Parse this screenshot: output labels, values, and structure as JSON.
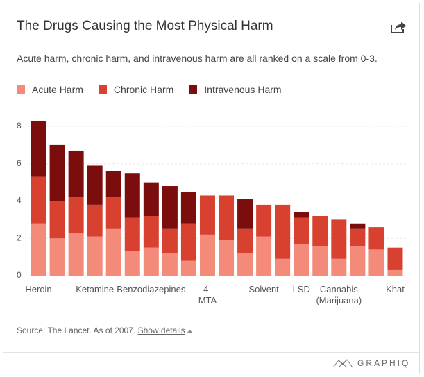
{
  "chart_data": {
    "type": "stacked_bar",
    "title": "The Drugs Causing the Most Physical Harm",
    "subtitle": "Acute harm, chronic harm, and intravenous harm are all ranked on a scale from 0-3.",
    "categories": [
      "Heroin",
      null,
      null,
      "Ketamine",
      null,
      null,
      "Benzodiazepines",
      null,
      null,
      "4-MTA",
      null,
      null,
      "Solvent",
      null,
      "LSD",
      null,
      "Cannabis (Marijuana)",
      null,
      null,
      "Khat"
    ],
    "series": [
      {
        "name": "Acute Harm",
        "color": "#f48a79",
        "values": [
          2.8,
          2.0,
          2.3,
          2.1,
          2.5,
          1.3,
          1.5,
          1.2,
          0.8,
          2.2,
          1.9,
          1.2,
          2.1,
          0.9,
          1.7,
          1.6,
          0.9,
          1.6,
          1.4,
          0.3
        ]
      },
      {
        "name": "Chronic Harm",
        "color": "#d8412f",
        "values": [
          2.5,
          2.0,
          1.9,
          1.7,
          1.7,
          1.8,
          1.7,
          1.3,
          2.0,
          2.1,
          2.4,
          1.3,
          1.7,
          2.9,
          1.4,
          1.6,
          2.1,
          0.9,
          1.2,
          1.2
        ]
      },
      {
        "name": "Intravenous Harm",
        "color": "#7b0d0d",
        "values": [
          3.0,
          3.0,
          2.5,
          2.1,
          1.4,
          2.4,
          1.8,
          2.3,
          1.7,
          0,
          0,
          1.6,
          0,
          0,
          0.3,
          0,
          0,
          0.3,
          0,
          0
        ]
      }
    ],
    "ylim": [
      0,
      8.5
    ],
    "yticks": [
      0,
      2,
      4,
      6,
      8
    ],
    "grid": true,
    "source": "Source: The Lancet. As of 2007.",
    "details_link": "Show details",
    "logo": "GRAPHIQ"
  }
}
